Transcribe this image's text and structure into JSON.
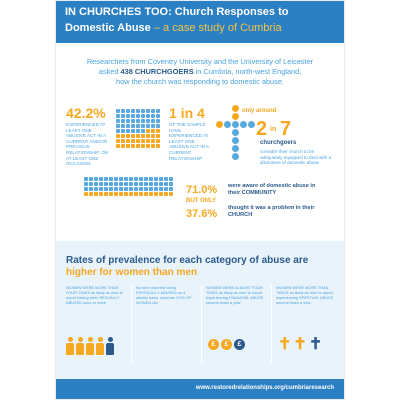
{
  "header": {
    "title_line1": "IN CHURCHES TOO: Church Responses to",
    "title_line2": "Domestic Abuse",
    "title_sub": " – a case study of Cumbria"
  },
  "intro": {
    "line1": "Researchers from Coventry University and the University of Leicester",
    "line2_pre": "asked ",
    "line2_bold": "438 CHURCHGOERS",
    "line2_post": " in Cumbria, north-west England,",
    "line3": "how the church was responding to domestic abuse."
  },
  "stats": {
    "s1_value": "42.2%",
    "s1_text": "experienced at least one abusive act in a CURRENT and/or PREVIOUS RELATIONSHIP, on at least one occasion",
    "s2_value": "1 in 4",
    "s2_text": "of the sample have experienced at least one abusive act in a CURRENT RELATIONSHIP",
    "s3_top": "only around",
    "s3_num_a": "2",
    "s3_in": "in",
    "s3_num_b": "7",
    "s3_label": "churchgoers",
    "s3_text": "consider their church to be adequately equipped to deal with a disclosure of domestic abuse",
    "s4_value": "71.0%",
    "s4_text": "were aware of domestic abuse in their COMMUNITY",
    "s5_label": "BUT ONLY",
    "s5_value": "37.6%",
    "s5_text": "thought it was a problem in their CHURCH"
  },
  "panel": {
    "title_pre": "Rates of prevalence for each category of abuse are ",
    "title_hl": "higher for women than men",
    "cols": [
      {
        "text": "WOMEN WERE MORE THAN FOUR TIMES as likely as men to report having been SEXUALLY ABUSED once or more"
      },
      {
        "text": "No men reported being PHYSICALLY ABUSED on a weekly basis, whereas 3.5% OF WOMEN did"
      },
      {
        "text": "WOMEN WERE ALMOST FOUR TIMES as likely as men to report experiencing FINANCIAL ABUSE several times a year"
      },
      {
        "text": "WOMEN WERE MORE THAN TWICE as likely as men to report experiencing SPIRITUAL ABUSE several times a year"
      }
    ],
    "coin_symbol": "£",
    "cross_symbol": "✝"
  },
  "footer": {
    "url": "www.restoredrelationships.org/cumbriaresearch"
  },
  "colors": {
    "blue": "#2b7fc3",
    "orange": "#f6a821",
    "navy": "#2b5a8c",
    "light_blue": "#5aa8e0"
  },
  "icons": [
    "church-grid-icon",
    "person-icon",
    "cross-icon",
    "coin-icon"
  ]
}
